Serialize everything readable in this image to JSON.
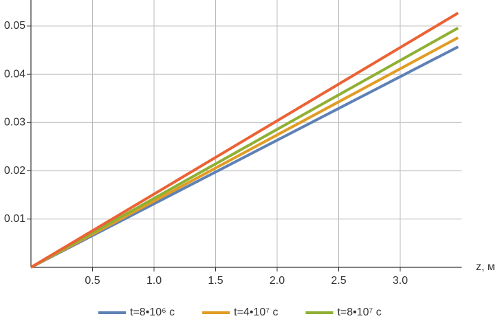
{
  "chart_data": {
    "type": "line",
    "x": [
      0,
      3.47
    ],
    "series": [
      {
        "name": "t=8•10⁶ с",
        "color": "#5e81b5",
        "values": [
          0,
          0.0457
        ]
      },
      {
        "name": "t=4•10⁷ с",
        "color": "#e19c24",
        "values": [
          0,
          0.0476
        ]
      },
      {
        "name": "t=8•10⁷ с",
        "color": "#8fb032",
        "values": [
          0,
          0.0496
        ]
      },
      {
        "color": "#eb6235",
        "values": [
          0,
          0.0527
        ]
      }
    ],
    "xlabel": "z, м",
    "xlim": [
      0,
      3.5
    ],
    "ylim": [
      0,
      0.0554
    ],
    "xticks": [
      0.5,
      {
        "value": 1,
        "label": "1.0"
      },
      1.5,
      {
        "value": 2,
        "label": "2.0"
      },
      2.5,
      {
        "value": 3,
        "label": "3.0"
      }
    ],
    "yticks": [
      0.01,
      0.02,
      0.03,
      0.04,
      0.05
    ],
    "grid": true,
    "legend": "bottom"
  }
}
